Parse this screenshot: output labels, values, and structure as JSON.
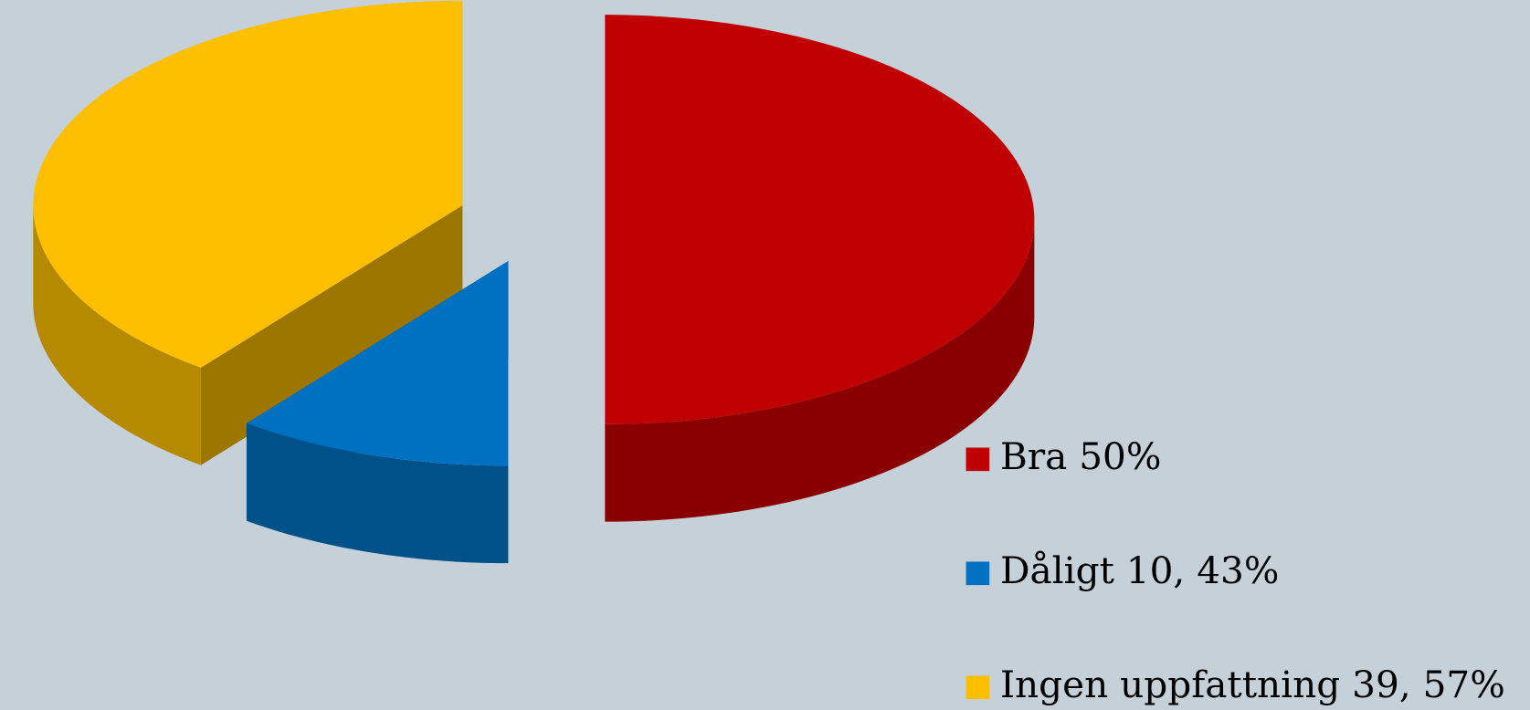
{
  "chart_data": {
    "type": "pie",
    "categories": [
      "Bra 50%",
      "Dåligt 10, 43%",
      "Ingen uppfattning 39, 57%"
    ],
    "values": [
      50,
      10.43,
      39.57
    ],
    "colors": [
      "#c00000",
      "#0070c0",
      "#fdbf00"
    ],
    "legend": "right"
  }
}
